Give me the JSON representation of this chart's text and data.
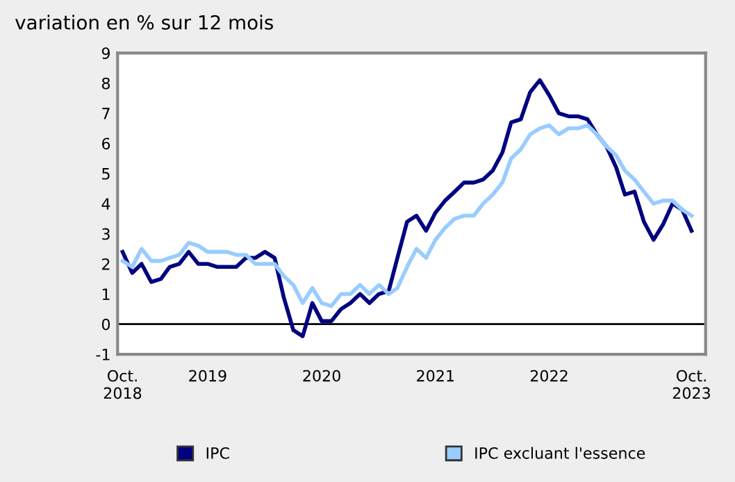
{
  "chart_data": {
    "type": "line",
    "title": "variation en % sur 12 mois",
    "x": [
      "2018-10",
      "2018-11",
      "2018-12",
      "2019-01",
      "2019-02",
      "2019-03",
      "2019-04",
      "2019-05",
      "2019-06",
      "2019-07",
      "2019-08",
      "2019-09",
      "2019-10",
      "2019-11",
      "2019-12",
      "2020-01",
      "2020-02",
      "2020-03",
      "2020-04",
      "2020-05",
      "2020-06",
      "2020-07",
      "2020-08",
      "2020-09",
      "2020-10",
      "2020-11",
      "2020-12",
      "2021-01",
      "2021-02",
      "2021-03",
      "2021-04",
      "2021-05",
      "2021-06",
      "2021-07",
      "2021-08",
      "2021-09",
      "2021-10",
      "2021-11",
      "2021-12",
      "2022-01",
      "2022-02",
      "2022-03",
      "2022-04",
      "2022-05",
      "2022-06",
      "2022-07",
      "2022-08",
      "2022-09",
      "2022-10",
      "2022-11",
      "2022-12",
      "2023-01",
      "2023-02",
      "2023-03",
      "2023-04",
      "2023-05",
      "2023-06",
      "2023-07",
      "2023-08",
      "2023-09",
      "2023-10"
    ],
    "series": [
      {
        "name": "IPC",
        "color": "#000080",
        "values": [
          2.4,
          1.7,
          2.0,
          1.4,
          1.5,
          1.9,
          2.0,
          2.4,
          2.0,
          2.0,
          1.9,
          1.9,
          1.9,
          2.2,
          2.2,
          2.4,
          2.2,
          0.9,
          -0.2,
          -0.4,
          0.7,
          0.1,
          0.1,
          0.5,
          0.7,
          1.0,
          0.7,
          1.0,
          1.1,
          2.2,
          3.4,
          3.6,
          3.1,
          3.7,
          4.1,
          4.4,
          4.7,
          4.7,
          4.8,
          5.1,
          5.7,
          6.7,
          6.8,
          7.7,
          8.1,
          7.6,
          7.0,
          6.9,
          6.9,
          6.8,
          6.3,
          5.9,
          5.2,
          4.3,
          4.4,
          3.4,
          2.8,
          3.3,
          4.0,
          3.8,
          3.1
        ]
      },
      {
        "name": "IPC excluant l'essence",
        "color": "#99ccff",
        "values": [
          2.1,
          1.9,
          2.5,
          2.1,
          2.1,
          2.2,
          2.3,
          2.7,
          2.6,
          2.4,
          2.4,
          2.4,
          2.3,
          2.3,
          2.0,
          2.0,
          2.0,
          1.6,
          1.3,
          0.7,
          1.2,
          0.7,
          0.6,
          1.0,
          1.0,
          1.3,
          1.0,
          1.3,
          1.0,
          1.2,
          1.9,
          2.5,
          2.2,
          2.8,
          3.2,
          3.5,
          3.6,
          3.6,
          4.0,
          4.3,
          4.7,
          5.5,
          5.8,
          6.3,
          6.5,
          6.6,
          6.3,
          6.5,
          6.5,
          6.6,
          6.3,
          5.9,
          5.6,
          5.1,
          4.8,
          4.4,
          4.0,
          4.1,
          4.1,
          3.8,
          3.6
        ]
      }
    ],
    "ylim": [
      -1,
      9
    ],
    "yticks": [
      -1,
      0,
      1,
      2,
      3,
      4,
      5,
      6,
      7,
      8,
      9
    ],
    "xlim": [
      "2018-09-15",
      "2023-11-15"
    ],
    "xticks": [
      {
        "value": "2018-10",
        "label": "Oct.\n2018"
      },
      {
        "value": "2019-07",
        "label": "2019"
      },
      {
        "value": "2020-07",
        "label": "2020"
      },
      {
        "value": "2021-07",
        "label": "2021"
      },
      {
        "value": "2022-07",
        "label": "2022"
      },
      {
        "value": "2023-10",
        "label": "Oct.\n2023"
      }
    ],
    "ref_lines": [
      {
        "axis": "y",
        "value": 0,
        "color": "#000000"
      }
    ],
    "legend": "bottom",
    "marker": "none",
    "line_style": "solid",
    "grid": false
  }
}
